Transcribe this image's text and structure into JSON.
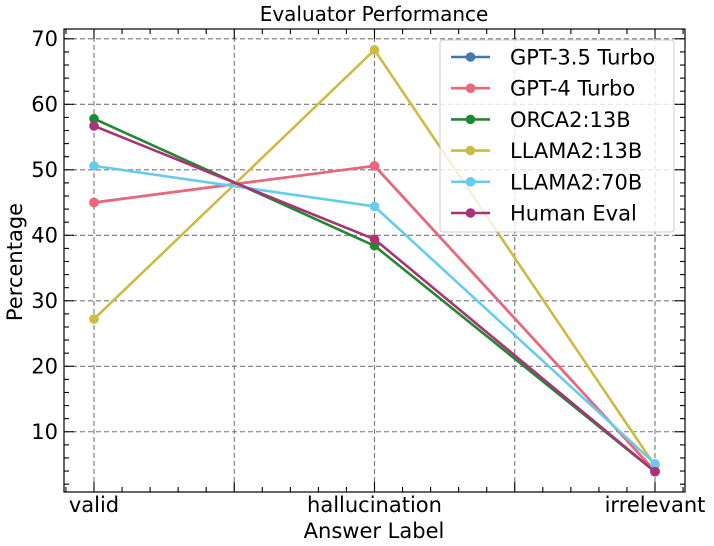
{
  "chart_data": {
    "type": "line",
    "title": "Evaluator Performance",
    "xlabel": "Answer Label",
    "ylabel": "Percentage",
    "categories": [
      "valid",
      "hallucination",
      "irrelevant"
    ],
    "ylim": [
      0.8,
      71.5
    ],
    "yticks": [
      10,
      20,
      30,
      40,
      50,
      60,
      70
    ],
    "grid": true,
    "legend_position": "top-right",
    "series": [
      {
        "name": "GPT-3.5 Turbo",
        "color": "#4477AA",
        "values": [
          45.0,
          50.6,
          4.0
        ]
      },
      {
        "name": "GPT-4 Turbo",
        "color": "#EE6677",
        "values": [
          45.0,
          50.6,
          4.0
        ]
      },
      {
        "name": "ORCA2:13B",
        "color": "#228833",
        "values": [
          57.8,
          38.4,
          3.9
        ]
      },
      {
        "name": "LLAMA2:13B",
        "color": "#CCBB44",
        "values": [
          27.2,
          68.3,
          4.8
        ]
      },
      {
        "name": "LLAMA2:70B",
        "color": "#66CCEE",
        "values": [
          50.6,
          44.4,
          5.1
        ]
      },
      {
        "name": "Human Eval",
        "color": "#AA3377",
        "values": [
          56.7,
          39.4,
          3.9
        ]
      }
    ]
  }
}
